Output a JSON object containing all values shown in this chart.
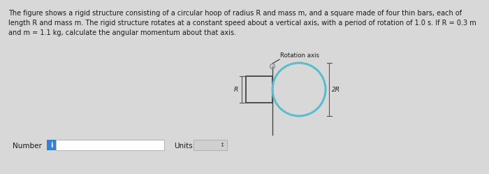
{
  "bg_color": "#d8d8d8",
  "text_color": "#1a1a1a",
  "paragraph_line1": "The figure shows a rigid structure consisting of a circular hoop of radius R and mass m, and a square made of four thin bars, each of",
  "paragraph_line2": "length R and mass m. The rigid structure rotates at a constant speed about a vertical axis, with a period of rotation of 1.0 s. If R = 0.3 m",
  "paragraph_line3": "and m = 1.1 kg, calculate the angular momentum about that axis.",
  "rotation_axis_label": "Rotation axis",
  "label_R": "R",
  "label_2R": "2R",
  "number_label": "Number",
  "units_label": "Units",
  "hoop_color": "#5abccc",
  "square_color": "#444444",
  "axis_line_color": "#444444",
  "dim_line_color": "#555555",
  "number_box_color": "#3a80d2",
  "input_bg_color": "#ffffff",
  "input_border_color": "#aaaaaa",
  "units_bg_color": "#d0d0d0",
  "fig_width": 7.0,
  "fig_height": 2.49,
  "dpi": 100
}
